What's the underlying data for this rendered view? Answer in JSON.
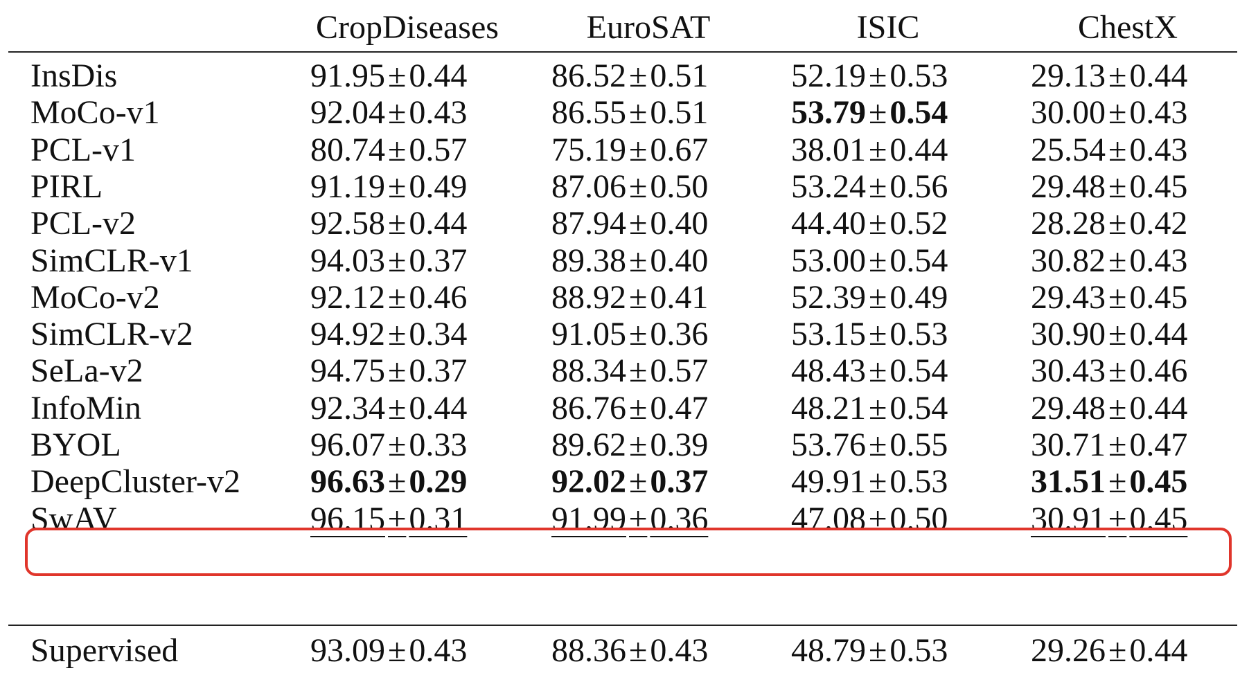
{
  "table": {
    "columns": [
      "CropDiseases",
      "EuroSAT",
      "ISIC",
      "ChestX"
    ],
    "rows": [
      {
        "method": "InsDis",
        "values": [
          {
            "mean": "91.95",
            "err": "0.44",
            "bold": false,
            "underline": false
          },
          {
            "mean": "86.52",
            "err": "0.51",
            "bold": false,
            "underline": false
          },
          {
            "mean": "52.19",
            "err": "0.53",
            "bold": false,
            "underline": false
          },
          {
            "mean": "29.13",
            "err": "0.44",
            "bold": false,
            "underline": false
          }
        ]
      },
      {
        "method": "MoCo-v1",
        "values": [
          {
            "mean": "92.04",
            "err": "0.43",
            "bold": false,
            "underline": false
          },
          {
            "mean": "86.55",
            "err": "0.51",
            "bold": false,
            "underline": false
          },
          {
            "mean": "53.79",
            "err": "0.54",
            "bold": true,
            "underline": false
          },
          {
            "mean": "30.00",
            "err": "0.43",
            "bold": false,
            "underline": false
          }
        ]
      },
      {
        "method": "PCL-v1",
        "values": [
          {
            "mean": "80.74",
            "err": "0.57",
            "bold": false,
            "underline": false
          },
          {
            "mean": "75.19",
            "err": "0.67",
            "bold": false,
            "underline": false
          },
          {
            "mean": "38.01",
            "err": "0.44",
            "bold": false,
            "underline": false
          },
          {
            "mean": "25.54",
            "err": "0.43",
            "bold": false,
            "underline": false
          }
        ]
      },
      {
        "method": "PIRL",
        "values": [
          {
            "mean": "91.19",
            "err": "0.49",
            "bold": false,
            "underline": false
          },
          {
            "mean": "87.06",
            "err": "0.50",
            "bold": false,
            "underline": false
          },
          {
            "mean": "53.24",
            "err": "0.56",
            "bold": false,
            "underline": false
          },
          {
            "mean": "29.48",
            "err": "0.45",
            "bold": false,
            "underline": false
          }
        ]
      },
      {
        "method": "PCL-v2",
        "values": [
          {
            "mean": "92.58",
            "err": "0.44",
            "bold": false,
            "underline": false
          },
          {
            "mean": "87.94",
            "err": "0.40",
            "bold": false,
            "underline": false
          },
          {
            "mean": "44.40",
            "err": "0.52",
            "bold": false,
            "underline": false
          },
          {
            "mean": "28.28",
            "err": "0.42",
            "bold": false,
            "underline": false
          }
        ]
      },
      {
        "method": "SimCLR-v1",
        "values": [
          {
            "mean": "94.03",
            "err": "0.37",
            "bold": false,
            "underline": false
          },
          {
            "mean": "89.38",
            "err": "0.40",
            "bold": false,
            "underline": false
          },
          {
            "mean": "53.00",
            "err": "0.54",
            "bold": false,
            "underline": false
          },
          {
            "mean": "30.82",
            "err": "0.43",
            "bold": false,
            "underline": false
          }
        ]
      },
      {
        "method": "MoCo-v2",
        "values": [
          {
            "mean": "92.12",
            "err": "0.46",
            "bold": false,
            "underline": false
          },
          {
            "mean": "88.92",
            "err": "0.41",
            "bold": false,
            "underline": false
          },
          {
            "mean": "52.39",
            "err": "0.49",
            "bold": false,
            "underline": false
          },
          {
            "mean": "29.43",
            "err": "0.45",
            "bold": false,
            "underline": false
          }
        ]
      },
      {
        "method": "SimCLR-v2",
        "values": [
          {
            "mean": "94.92",
            "err": "0.34",
            "bold": false,
            "underline": false
          },
          {
            "mean": "91.05",
            "err": "0.36",
            "bold": false,
            "underline": false
          },
          {
            "mean": "53.15",
            "err": "0.53",
            "bold": false,
            "underline": false
          },
          {
            "mean": "30.90",
            "err": "0.44",
            "bold": false,
            "underline": false
          }
        ]
      },
      {
        "method": "SeLa-v2",
        "values": [
          {
            "mean": "94.75",
            "err": "0.37",
            "bold": false,
            "underline": false
          },
          {
            "mean": "88.34",
            "err": "0.57",
            "bold": false,
            "underline": false
          },
          {
            "mean": "48.43",
            "err": "0.54",
            "bold": false,
            "underline": false
          },
          {
            "mean": "30.43",
            "err": "0.46",
            "bold": false,
            "underline": false
          }
        ]
      },
      {
        "method": "InfoMin",
        "values": [
          {
            "mean": "92.34",
            "err": "0.44",
            "bold": false,
            "underline": false
          },
          {
            "mean": "86.76",
            "err": "0.47",
            "bold": false,
            "underline": false
          },
          {
            "mean": "48.21",
            "err": "0.54",
            "bold": false,
            "underline": false
          },
          {
            "mean": "29.48",
            "err": "0.44",
            "bold": false,
            "underline": false
          }
        ]
      },
      {
        "method": "BYOL",
        "values": [
          {
            "mean": "96.07",
            "err": "0.33",
            "bold": false,
            "underline": false
          },
          {
            "mean": "89.62",
            "err": "0.39",
            "bold": false,
            "underline": false
          },
          {
            "mean": "53.76",
            "err": "0.55",
            "bold": false,
            "underline": false
          },
          {
            "mean": "30.71",
            "err": "0.47",
            "bold": false,
            "underline": false
          }
        ]
      },
      {
        "method": "DeepCluster-v2",
        "highlighted": true,
        "values": [
          {
            "mean": "96.63",
            "err": "0.29",
            "bold": true,
            "underline": false
          },
          {
            "mean": "92.02",
            "err": "0.37",
            "bold": true,
            "underline": false
          },
          {
            "mean": "49.91",
            "err": "0.53",
            "bold": false,
            "underline": false
          },
          {
            "mean": "31.51",
            "err": "0.45",
            "bold": true,
            "underline": false
          }
        ]
      },
      {
        "method": "SwAV",
        "values": [
          {
            "mean": "96.15",
            "err": "0.31",
            "bold": false,
            "underline": true
          },
          {
            "mean": "91.99",
            "err": "0.36",
            "bold": false,
            "underline": true
          },
          {
            "mean": "47.08",
            "err": "0.50",
            "bold": false,
            "underline": false
          },
          {
            "mean": "30.91",
            "err": "0.45",
            "bold": false,
            "underline": true
          }
        ]
      }
    ],
    "baseline": {
      "method": "Supervised",
      "values": [
        {
          "mean": "93.09",
          "err": "0.43",
          "bold": false,
          "underline": false
        },
        {
          "mean": "88.36",
          "err": "0.43",
          "bold": false,
          "underline": false
        },
        {
          "mean": "48.79",
          "err": "0.53",
          "bold": false,
          "underline": false
        },
        {
          "mean": "29.26",
          "err": "0.44",
          "bold": false,
          "underline": false
        }
      ]
    },
    "pm_symbol": "±",
    "highlight_color": "#e0352b"
  }
}
